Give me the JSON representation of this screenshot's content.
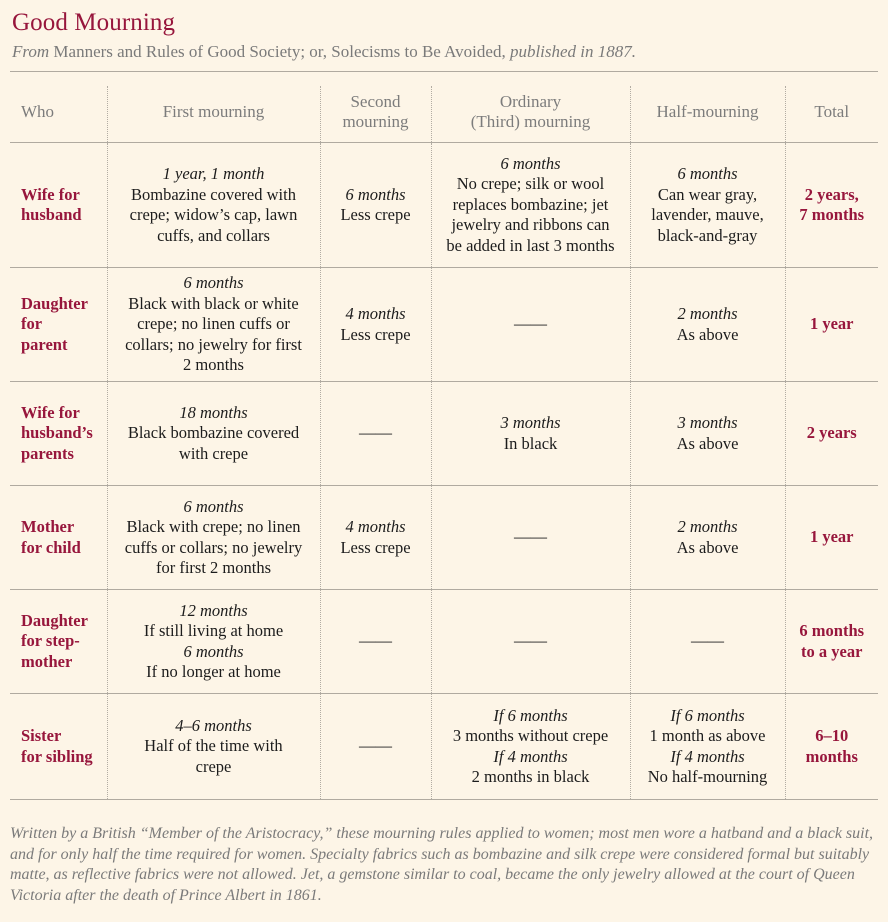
{
  "title": "Good Mourning",
  "subtitle": {
    "from": "From",
    "book": "Manners and Rules of Good Society; or, Solecisms to Be Avoided,",
    "published": "published in 1887."
  },
  "headers": {
    "who": "Who",
    "first": "First mourning",
    "second": [
      "Second",
      "mourning"
    ],
    "ordinary": [
      "Ordinary",
      "(Third) mourning"
    ],
    "half": "Half-mourning",
    "total": "Total"
  },
  "rows": [
    {
      "who": [
        "Wife for",
        "husband"
      ],
      "first": {
        "dur": "1 year, 1 month",
        "lines": [
          "Bombazine covered with",
          "crepe; widow’s cap, lawn",
          "cuffs, and collars"
        ]
      },
      "second": {
        "dur": "6 months",
        "lines": [
          "Less crepe"
        ]
      },
      "ordinary": {
        "dur": "6 months",
        "lines": [
          "No crepe; silk or wool",
          "replaces bombazine; jet",
          "jewelry and ribbons can",
          "be added in last 3 months"
        ]
      },
      "half": {
        "dur": "6 months",
        "lines": [
          "Can wear gray,",
          "lavender, mauve,",
          "black-and-gray"
        ]
      },
      "total": [
        "2 years,",
        "7 months"
      ]
    },
    {
      "who": [
        "Daughter",
        "for",
        "parent"
      ],
      "first": {
        "dur": "6 months",
        "lines": [
          "Black with black or white",
          "crepe; no linen cuffs or",
          "collars; no jewelry for first",
          "2 months"
        ]
      },
      "second": {
        "dur": "4 months",
        "lines": [
          "Less crepe"
        ]
      },
      "ordinary": {
        "dash": "——"
      },
      "half": {
        "dur": "2 months",
        "lines": [
          "As above"
        ]
      },
      "total": [
        "1 year"
      ]
    },
    {
      "who": [
        "Wife for",
        "husband’s",
        "parents"
      ],
      "first": {
        "dur": "18 months",
        "lines": [
          "Black bombazine covered",
          "with crepe"
        ]
      },
      "second": {
        "dash": "——"
      },
      "ordinary": {
        "dur": "3 months",
        "lines": [
          "In black"
        ]
      },
      "half": {
        "dur": "3 months",
        "lines": [
          "As above"
        ]
      },
      "total": [
        "2 years"
      ]
    },
    {
      "who": [
        "Mother",
        "for child"
      ],
      "first": {
        "dur": "6 months",
        "lines": [
          "Black with crepe; no linen",
          "cuffs or collars; no jewelry",
          "for first 2 months"
        ]
      },
      "second": {
        "dur": "4 months",
        "lines": [
          "Less crepe"
        ]
      },
      "ordinary": {
        "dash": "——"
      },
      "half": {
        "dur": "2 months",
        "lines": [
          "As above"
        ]
      },
      "total": [
        "1 year"
      ]
    },
    {
      "who": [
        "Daughter",
        "for step-",
        "mother"
      ],
      "first": {
        "dur": "12 months",
        "lines": [
          "If still living at home"
        ],
        "dur2": "6 months",
        "lines2": [
          "If no longer at home"
        ]
      },
      "second": {
        "dash": "——"
      },
      "ordinary": {
        "dash": "——"
      },
      "half": {
        "dash": "——"
      },
      "total": [
        "6 months",
        "to a year"
      ]
    },
    {
      "who": [
        "Sister",
        "for sibling"
      ],
      "first": {
        "dur": "4–6 months",
        "lines": [
          "Half of the time with",
          "crepe"
        ]
      },
      "second": {
        "dash": "——"
      },
      "ordinary": {
        "dur": "If 6 months",
        "lines": [
          "3 months without crepe"
        ],
        "dur2": "If 4 months",
        "lines2": [
          "2 months in black"
        ]
      },
      "half": {
        "dur": "If 6 months",
        "lines": [
          "1 month as above"
        ],
        "dur2": "If 4 months",
        "lines2": [
          "No half-mourning"
        ]
      },
      "total": [
        "6–10",
        "months"
      ]
    }
  ],
  "footnote": "Written by a British “Member of the Aristocracy,” these mourning rules applied to women; most men wore a hatband and a black suit, and for only half the time required for women. Specialty fabrics such as bombazine and silk crepe were considered formal but suitably matte, as reflective fabrics were not allowed. Jet, a gemstone similar to coal, became the only jewelry allowed at the court of Queen Victoria after the death of Prince Albert in 1861."
}
